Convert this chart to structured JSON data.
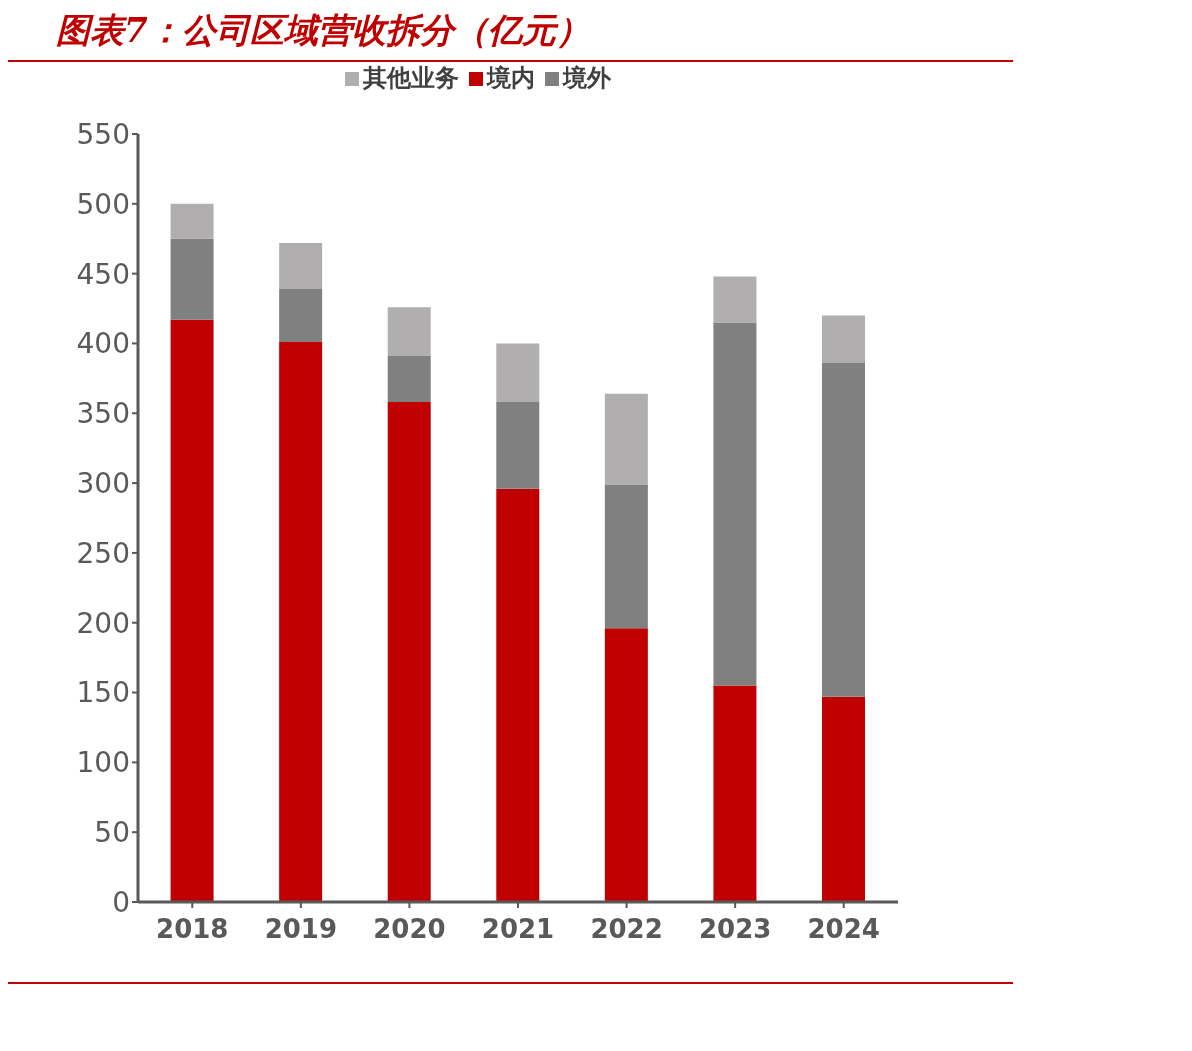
{
  "chart_data": {
    "type": "bar",
    "title": "图表7：公司区域营收拆分（亿元）",
    "categories": [
      "2018",
      "2019",
      "2020",
      "2021",
      "2022",
      "2023",
      "2024"
    ],
    "stacked": true,
    "series": [
      {
        "name": "境内",
        "color": "#c00000",
        "values": [
          417,
          401,
          358,
          296,
          196,
          155,
          147
        ]
      },
      {
        "name": "境外",
        "color": "#808080",
        "values": [
          58,
          38,
          33,
          62,
          103,
          260,
          239
        ]
      },
      {
        "name": "其他业务",
        "color": "#b0aeae",
        "values": [
          25,
          33,
          35,
          42,
          65,
          33,
          34
        ]
      }
    ],
    "ylim": [
      0,
      550
    ],
    "yticks": [
      0,
      50,
      100,
      150,
      200,
      250,
      300,
      350,
      400,
      450,
      500,
      550
    ],
    "grid": false,
    "legend": "top"
  }
}
